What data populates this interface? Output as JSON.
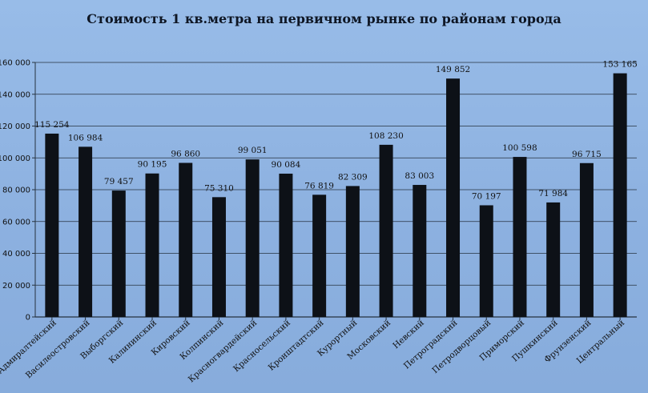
{
  "chart_data": {
    "type": "bar",
    "title": "Стоимость 1 кв.метра на первичном  рынке по районам  города",
    "xlabel": "",
    "ylabel": "",
    "ylim": [
      0,
      160000
    ],
    "yticks": [
      0,
      20000,
      40000,
      60000,
      80000,
      100000,
      120000,
      140000,
      160000
    ],
    "ytick_labels": [
      "0",
      "20 000",
      "40 000",
      "60 000",
      "80 000",
      "100 000",
      "120 000",
      "140 000",
      "160 000"
    ],
    "grid": true,
    "legend": "none",
    "categories": [
      "Адмиралтейский",
      "Василеостровский",
      "Выборгский",
      "Калининский",
      "Кировский",
      "Колпинский",
      "Красногвардейский",
      "Красносельский",
      "Кронштадтский",
      "Курортный",
      "Московский",
      "Невский",
      "Петроградский",
      "Петродворцовый",
      "Приморский",
      "Пушкинский",
      "Фрунзенский",
      "Центральный"
    ],
    "values": [
      115254,
      106984,
      79457,
      90195,
      96860,
      75310,
      99051,
      90084,
      76819,
      82309,
      108230,
      83003,
      149852,
      70197,
      100598,
      71984,
      96715,
      153165
    ],
    "value_labels": [
      "115 254",
      "106 984",
      "79 457",
      "90 195",
      "96 860",
      "75 310",
      "99 051",
      "90 084",
      "76 819",
      "82 309",
      "108 230",
      "83 003",
      "149 852",
      "70 197",
      "100 598",
      "71 984",
      "96 715",
      "153 165"
    ],
    "colors": {
      "bar": "#0d1117",
      "grid": "#26323f",
      "background": "#8fb4e2"
    }
  }
}
